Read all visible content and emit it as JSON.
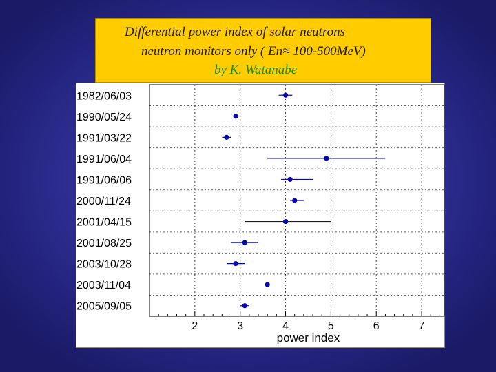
{
  "title_lines": [
    "Differential power index of solar neutrons",
    "neutron monitors only ( En≈ 100-500MeV)",
    "by K. Watanabe"
  ],
  "colors": {
    "background": "#2e2e96",
    "title_box": "#ffcc00",
    "author_text": "#1f8a1f",
    "marker": "#0a0aa8"
  },
  "chart_data": {
    "type": "scatter",
    "xlabel": "power index",
    "xlim": [
      1.0,
      7.5
    ],
    "xticks": [
      2,
      3,
      4,
      5,
      6,
      7
    ],
    "grid": true,
    "categories": [
      "1982/06/03",
      "1990/05/24",
      "1991/03/22",
      "1991/06/04",
      "1991/06/06",
      "2000/11/24",
      "2001/04/15",
      "2001/08/25",
      "2003/10/28",
      "2003/11/04",
      "2005/09/05"
    ],
    "values": [
      4.0,
      2.9,
      2.7,
      4.9,
      4.1,
      4.2,
      4.0,
      3.1,
      2.9,
      3.6,
      3.1
    ],
    "error_low": [
      0.15,
      0.05,
      0.1,
      1.3,
      0.2,
      0.1,
      0.9,
      0.3,
      0.2,
      0.05,
      0.1
    ],
    "error_high": [
      0.15,
      0.05,
      0.1,
      1.3,
      0.5,
      0.2,
      1.0,
      0.3,
      0.2,
      0.05,
      0.1
    ]
  }
}
